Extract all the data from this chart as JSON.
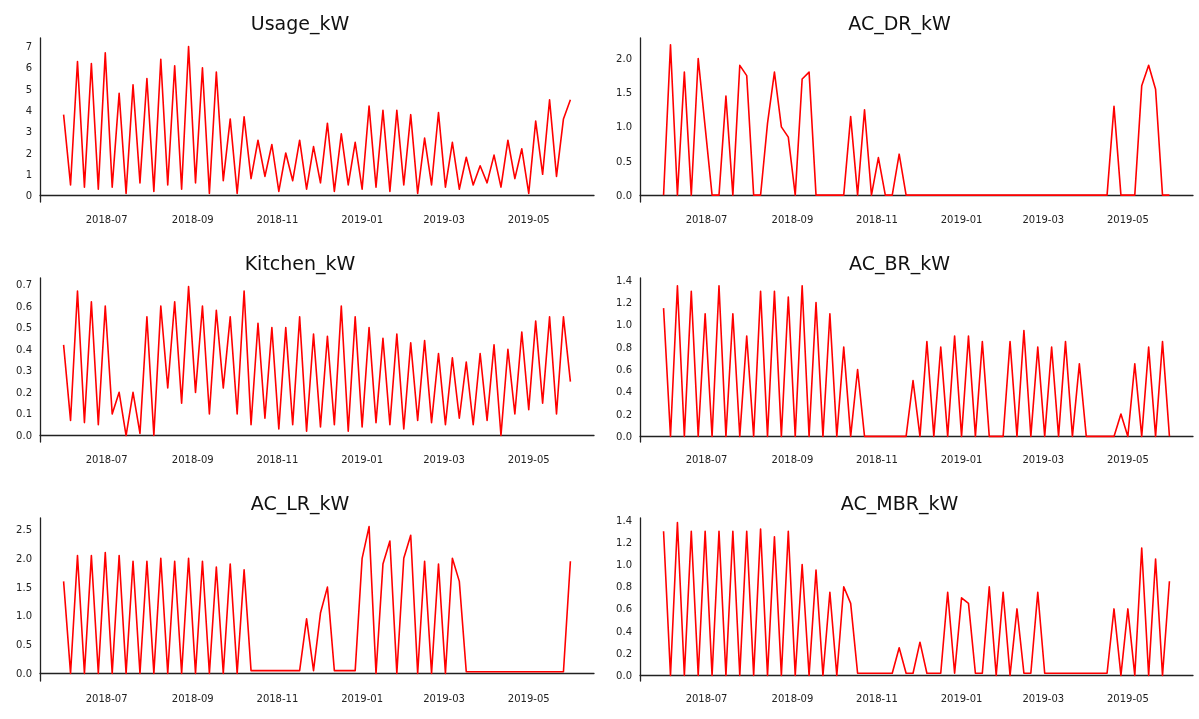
{
  "chart_data": [
    {
      "type": "line",
      "title": "Usage_kW",
      "color": "#ff0000",
      "grid": false,
      "x": [
        "2018-05-31",
        "2018-06-05",
        "2018-06-10",
        "2018-06-15",
        "2018-06-20",
        "2018-06-25",
        "2018-06-30",
        "2018-07-05",
        "2018-07-10",
        "2018-07-15",
        "2018-07-20",
        "2018-07-25",
        "2018-07-30",
        "2018-08-04",
        "2018-08-09",
        "2018-08-14",
        "2018-08-19",
        "2018-08-24",
        "2018-08-29",
        "2018-09-03",
        "2018-09-08",
        "2018-09-13",
        "2018-09-18",
        "2018-09-23",
        "2018-09-28",
        "2018-10-03",
        "2018-10-08",
        "2018-10-13",
        "2018-10-18",
        "2018-10-23",
        "2018-10-28",
        "2018-11-02",
        "2018-11-07",
        "2018-11-12",
        "2018-11-17",
        "2018-11-22",
        "2018-11-27",
        "2018-12-02",
        "2018-12-07",
        "2018-12-12",
        "2018-12-17",
        "2018-12-22",
        "2018-12-27",
        "2019-01-01",
        "2019-01-06",
        "2019-01-11",
        "2019-01-16",
        "2019-01-21",
        "2019-01-26",
        "2019-01-31",
        "2019-02-05",
        "2019-02-10",
        "2019-02-15",
        "2019-02-20",
        "2019-02-25",
        "2019-03-02",
        "2019-03-07",
        "2019-03-12",
        "2019-03-17",
        "2019-03-22",
        "2019-03-27",
        "2019-04-01",
        "2019-04-06",
        "2019-04-11",
        "2019-04-16",
        "2019-04-21",
        "2019-04-26",
        "2019-05-01",
        "2019-05-06",
        "2019-05-11",
        "2019-05-16",
        "2019-05-21",
        "2019-05-26",
        "2019-05-31"
      ],
      "values": [
        3.8,
        0.5,
        6.3,
        0.4,
        6.2,
        0.3,
        6.7,
        0.4,
        4.8,
        0.1,
        5.2,
        0.6,
        5.5,
        0.2,
        6.4,
        0.5,
        6.1,
        0.3,
        7.0,
        0.6,
        6.0,
        0.1,
        5.8,
        0.7,
        3.6,
        0.1,
        3.7,
        0.8,
        2.6,
        0.9,
        2.4,
        0.2,
        2.0,
        0.7,
        2.6,
        0.3,
        2.3,
        0.6,
        3.4,
        0.2,
        2.9,
        0.5,
        2.5,
        0.3,
        4.2,
        0.4,
        4.0,
        0.2,
        4.0,
        0.5,
        3.8,
        0.1,
        2.7,
        0.5,
        3.9,
        0.4,
        2.5,
        0.3,
        1.8,
        0.5,
        1.4,
        0.6,
        1.9,
        0.4,
        2.6,
        0.8,
        2.2,
        0.1,
        3.5,
        1.0,
        4.5,
        0.9,
        3.6,
        4.5
      ],
      "xlim": [
        "2018-05-14",
        "2019-06-17"
      ],
      "xticks": [
        "2018-07",
        "2018-09",
        "2018-11",
        "2019-01",
        "2019-03",
        "2019-05"
      ],
      "ylim": [
        -0.3,
        7.4
      ],
      "yticks": [
        0,
        1,
        2,
        3,
        4,
        5,
        6,
        7
      ]
    },
    {
      "type": "line",
      "title": "AC_DR_kW",
      "color": "#ff0000",
      "grid": false,
      "x": [
        "2018-05-31",
        "2018-06-05",
        "2018-06-10",
        "2018-06-15",
        "2018-06-20",
        "2018-06-25",
        "2018-06-30",
        "2018-07-05",
        "2018-07-10",
        "2018-07-15",
        "2018-07-20",
        "2018-07-25",
        "2018-07-30",
        "2018-08-04",
        "2018-08-09",
        "2018-08-14",
        "2018-08-19",
        "2018-08-24",
        "2018-08-29",
        "2018-09-03",
        "2018-09-08",
        "2018-09-13",
        "2018-09-18",
        "2018-09-23",
        "2018-09-28",
        "2018-10-03",
        "2018-10-08",
        "2018-10-13",
        "2018-10-18",
        "2018-10-23",
        "2018-10-28",
        "2018-11-02",
        "2018-11-07",
        "2018-11-12",
        "2018-11-17",
        "2018-11-22",
        "2018-11-27",
        "2018-12-02",
        "2018-12-07",
        "2018-12-12",
        "2018-12-17",
        "2018-12-22",
        "2018-12-27",
        "2019-01-01",
        "2019-01-06",
        "2019-01-11",
        "2019-01-16",
        "2019-01-21",
        "2019-01-26",
        "2019-01-31",
        "2019-02-05",
        "2019-02-10",
        "2019-02-15",
        "2019-02-20",
        "2019-02-25",
        "2019-03-02",
        "2019-03-07",
        "2019-03-12",
        "2019-03-17",
        "2019-03-22",
        "2019-03-27",
        "2019-04-01",
        "2019-04-06",
        "2019-04-11",
        "2019-04-16",
        "2019-04-21",
        "2019-04-26",
        "2019-05-01",
        "2019-05-06",
        "2019-05-11",
        "2019-05-16",
        "2019-05-21",
        "2019-05-26",
        "2019-05-31"
      ],
      "values": [
        0,
        2.2,
        0,
        1.8,
        0,
        2.0,
        1.0,
        0,
        0,
        1.45,
        0,
        1.9,
        1.75,
        0,
        0,
        1.05,
        1.8,
        1.0,
        0.85,
        0,
        1.7,
        1.8,
        0,
        0,
        0,
        0,
        0,
        1.15,
        0,
        1.25,
        0,
        0.55,
        0,
        0,
        0.6,
        0,
        0,
        0,
        0,
        0,
        0,
        0,
        0,
        0,
        0,
        0,
        0,
        0,
        0,
        0,
        0,
        0,
        0,
        0,
        0,
        0,
        0,
        0,
        0,
        0,
        0,
        0,
        0,
        0,
        0,
        1.3,
        0,
        0,
        0,
        1.6,
        1.9,
        1.55,
        0,
        0
      ],
      "xlim": [
        "2018-05-14",
        "2019-06-17"
      ],
      "xticks": [
        "2018-07",
        "2018-09",
        "2018-11",
        "2019-01",
        "2019-03",
        "2019-05"
      ],
      "ylim": [
        -0.1,
        2.3
      ],
      "yticks": [
        {
          "value": 0,
          "label": "0.0"
        },
        {
          "value": 0.5,
          "label": "0.5"
        },
        {
          "value": 1,
          "label": "1.0"
        },
        {
          "value": 1.5,
          "label": "1.5"
        },
        {
          "value": 2,
          "label": "2.0"
        }
      ]
    },
    {
      "type": "line",
      "title": "Kitchen_kW",
      "color": "#ff0000",
      "grid": false,
      "x": [
        "2018-05-31",
        "2018-06-05",
        "2018-06-10",
        "2018-06-15",
        "2018-06-20",
        "2018-06-25",
        "2018-06-30",
        "2018-07-05",
        "2018-07-10",
        "2018-07-15",
        "2018-07-20",
        "2018-07-25",
        "2018-07-30",
        "2018-08-04",
        "2018-08-09",
        "2018-08-14",
        "2018-08-19",
        "2018-08-24",
        "2018-08-29",
        "2018-09-03",
        "2018-09-08",
        "2018-09-13",
        "2018-09-18",
        "2018-09-23",
        "2018-09-28",
        "2018-10-03",
        "2018-10-08",
        "2018-10-13",
        "2018-10-18",
        "2018-10-23",
        "2018-10-28",
        "2018-11-02",
        "2018-11-07",
        "2018-11-12",
        "2018-11-17",
        "2018-11-22",
        "2018-11-27",
        "2018-12-02",
        "2018-12-07",
        "2018-12-12",
        "2018-12-17",
        "2018-12-22",
        "2018-12-27",
        "2019-01-01",
        "2019-01-06",
        "2019-01-11",
        "2019-01-16",
        "2019-01-21",
        "2019-01-26",
        "2019-01-31",
        "2019-02-05",
        "2019-02-10",
        "2019-02-15",
        "2019-02-20",
        "2019-02-25",
        "2019-03-02",
        "2019-03-07",
        "2019-03-12",
        "2019-03-17",
        "2019-03-22",
        "2019-03-27",
        "2019-04-01",
        "2019-04-06",
        "2019-04-11",
        "2019-04-16",
        "2019-04-21",
        "2019-04-26",
        "2019-05-01",
        "2019-05-06",
        "2019-05-11",
        "2019-05-16",
        "2019-05-21",
        "2019-05-26",
        "2019-05-31"
      ],
      "values": [
        0.42,
        0.07,
        0.67,
        0.06,
        0.62,
        0.05,
        0.6,
        0.1,
        0.2,
        0.0,
        0.2,
        0.01,
        0.55,
        0.0,
        0.6,
        0.22,
        0.62,
        0.15,
        0.69,
        0.2,
        0.6,
        0.1,
        0.58,
        0.22,
        0.55,
        0.1,
        0.67,
        0.05,
        0.52,
        0.08,
        0.5,
        0.03,
        0.5,
        0.05,
        0.55,
        0.02,
        0.47,
        0.04,
        0.46,
        0.05,
        0.6,
        0.02,
        0.55,
        0.04,
        0.5,
        0.06,
        0.45,
        0.05,
        0.47,
        0.03,
        0.43,
        0.07,
        0.44,
        0.06,
        0.38,
        0.05,
        0.36,
        0.08,
        0.34,
        0.05,
        0.38,
        0.07,
        0.42,
        0.0,
        0.4,
        0.1,
        0.48,
        0.12,
        0.53,
        0.15,
        0.55,
        0.1,
        0.55,
        0.25
      ],
      "xlim": [
        "2018-05-14",
        "2019-06-17"
      ],
      "xticks": [
        "2018-07",
        "2018-09",
        "2018-11",
        "2019-01",
        "2019-03",
        "2019-05"
      ],
      "ylim": [
        -0.03,
        0.73
      ],
      "yticks": [
        {
          "value": 0,
          "label": "0.0"
        },
        0.1,
        0.2,
        0.3,
        0.4,
        0.5,
        0.6,
        0.7
      ]
    },
    {
      "type": "line",
      "title": "AC_BR_kW",
      "color": "#ff0000",
      "grid": false,
      "x": [
        "2018-05-31",
        "2018-06-05",
        "2018-06-10",
        "2018-06-15",
        "2018-06-20",
        "2018-06-25",
        "2018-06-30",
        "2018-07-05",
        "2018-07-10",
        "2018-07-15",
        "2018-07-20",
        "2018-07-25",
        "2018-07-30",
        "2018-08-04",
        "2018-08-09",
        "2018-08-14",
        "2018-08-19",
        "2018-08-24",
        "2018-08-29",
        "2018-09-03",
        "2018-09-08",
        "2018-09-13",
        "2018-09-18",
        "2018-09-23",
        "2018-09-28",
        "2018-10-03",
        "2018-10-08",
        "2018-10-13",
        "2018-10-18",
        "2018-10-23",
        "2018-10-28",
        "2018-11-02",
        "2018-11-07",
        "2018-11-12",
        "2018-11-17",
        "2018-11-22",
        "2018-11-27",
        "2018-12-02",
        "2018-12-07",
        "2018-12-12",
        "2018-12-17",
        "2018-12-22",
        "2018-12-27",
        "2019-01-01",
        "2019-01-06",
        "2019-01-11",
        "2019-01-16",
        "2019-01-21",
        "2019-01-26",
        "2019-01-31",
        "2019-02-05",
        "2019-02-10",
        "2019-02-15",
        "2019-02-20",
        "2019-02-25",
        "2019-03-02",
        "2019-03-07",
        "2019-03-12",
        "2019-03-17",
        "2019-03-22",
        "2019-03-27",
        "2019-04-01",
        "2019-04-06",
        "2019-04-11",
        "2019-04-16",
        "2019-04-21",
        "2019-04-26",
        "2019-05-01",
        "2019-05-06",
        "2019-05-11",
        "2019-05-16",
        "2019-05-21",
        "2019-05-26",
        "2019-05-31"
      ],
      "values": [
        1.15,
        0,
        1.35,
        0,
        1.3,
        0,
        1.1,
        0,
        1.35,
        0,
        1.1,
        0,
        0.9,
        0,
        1.3,
        0,
        1.3,
        0,
        1.25,
        0,
        1.35,
        0,
        1.2,
        0,
        1.1,
        0,
        0.8,
        0,
        0.6,
        0,
        0,
        0,
        0,
        0,
        0,
        0,
        0.5,
        0,
        0.85,
        0,
        0.8,
        0,
        0.9,
        0,
        0.9,
        0,
        0.85,
        0,
        0,
        0,
        0.85,
        0,
        0.95,
        0,
        0.8,
        0,
        0.8,
        0,
        0.85,
        0,
        0.65,
        0,
        0,
        0,
        0,
        0,
        0.2,
        0,
        0.65,
        0,
        0.8,
        0,
        0.85,
        0
      ],
      "xlim": [
        "2018-05-14",
        "2019-06-17"
      ],
      "xticks": [
        "2018-07",
        "2018-09",
        "2018-11",
        "2019-01",
        "2019-03",
        "2019-05"
      ],
      "ylim": [
        -0.05,
        1.42
      ],
      "yticks": [
        {
          "value": 0,
          "label": "0.0"
        },
        0.2,
        0.4,
        0.6,
        0.8,
        {
          "value": 1,
          "label": "1.0"
        },
        1.2,
        1.4
      ]
    },
    {
      "type": "line",
      "title": "AC_LR_kW",
      "color": "#ff0000",
      "grid": false,
      "x": [
        "2018-05-31",
        "2018-06-05",
        "2018-06-10",
        "2018-06-15",
        "2018-06-20",
        "2018-06-25",
        "2018-06-30",
        "2018-07-05",
        "2018-07-10",
        "2018-07-15",
        "2018-07-20",
        "2018-07-25",
        "2018-07-30",
        "2018-08-04",
        "2018-08-09",
        "2018-08-14",
        "2018-08-19",
        "2018-08-24",
        "2018-08-29",
        "2018-09-03",
        "2018-09-08",
        "2018-09-13",
        "2018-09-18",
        "2018-09-23",
        "2018-09-28",
        "2018-10-03",
        "2018-10-08",
        "2018-10-13",
        "2018-10-18",
        "2018-10-23",
        "2018-10-28",
        "2018-11-02",
        "2018-11-07",
        "2018-11-12",
        "2018-11-17",
        "2018-11-22",
        "2018-11-27",
        "2018-12-02",
        "2018-12-07",
        "2018-12-12",
        "2018-12-17",
        "2018-12-22",
        "2018-12-27",
        "2019-01-01",
        "2019-01-06",
        "2019-01-11",
        "2019-01-16",
        "2019-01-21",
        "2019-01-26",
        "2019-01-31",
        "2019-02-05",
        "2019-02-10",
        "2019-02-15",
        "2019-02-20",
        "2019-02-25",
        "2019-03-02",
        "2019-03-07",
        "2019-03-12",
        "2019-03-17",
        "2019-03-22",
        "2019-03-27",
        "2019-04-01",
        "2019-04-06",
        "2019-04-11",
        "2019-04-16",
        "2019-04-21",
        "2019-04-26",
        "2019-05-01",
        "2019-05-06",
        "2019-05-11",
        "2019-05-16",
        "2019-05-21",
        "2019-05-26",
        "2019-05-31"
      ],
      "values": [
        1.6,
        0,
        2.05,
        0,
        2.05,
        0,
        2.1,
        0,
        2.05,
        0,
        1.95,
        0,
        1.95,
        0,
        2.0,
        0,
        1.95,
        0,
        2.0,
        0,
        1.95,
        0,
        1.85,
        0,
        1.9,
        0,
        1.8,
        0.05,
        0.05,
        0.05,
        0.05,
        0.05,
        0.05,
        0.05,
        0.05,
        0.95,
        0.05,
        1.05,
        1.5,
        0.05,
        0.05,
        0.05,
        0.05,
        2.0,
        2.55,
        0,
        1.9,
        2.3,
        0,
        2.0,
        2.4,
        0,
        1.95,
        0,
        1.9,
        0,
        2.0,
        1.6,
        0.03,
        0.03,
        0.03,
        0.03,
        0.03,
        0.03,
        0.03,
        0.03,
        0.03,
        0.03,
        0.03,
        0.03,
        0.03,
        0.03,
        0.03,
        1.95
      ],
      "xlim": [
        "2018-05-14",
        "2019-06-17"
      ],
      "xticks": [
        "2018-07",
        "2018-09",
        "2018-11",
        "2019-01",
        "2019-03",
        "2019-05"
      ],
      "ylim": [
        -0.13,
        2.7
      ],
      "yticks": [
        {
          "value": 0,
          "label": "0.0"
        },
        0.5,
        {
          "value": 1,
          "label": "1.0"
        },
        1.5,
        {
          "value": 2,
          "label": "2.0"
        },
        2.5
      ]
    },
    {
      "type": "line",
      "title": "AC_MBR_kW",
      "color": "#ff0000",
      "grid": false,
      "x": [
        "2018-05-31",
        "2018-06-05",
        "2018-06-10",
        "2018-06-15",
        "2018-06-20",
        "2018-06-25",
        "2018-06-30",
        "2018-07-05",
        "2018-07-10",
        "2018-07-15",
        "2018-07-20",
        "2018-07-25",
        "2018-07-30",
        "2018-08-04",
        "2018-08-09",
        "2018-08-14",
        "2018-08-19",
        "2018-08-24",
        "2018-08-29",
        "2018-09-03",
        "2018-09-08",
        "2018-09-13",
        "2018-09-18",
        "2018-09-23",
        "2018-09-28",
        "2018-10-03",
        "2018-10-08",
        "2018-10-13",
        "2018-10-18",
        "2018-10-23",
        "2018-10-28",
        "2018-11-02",
        "2018-11-07",
        "2018-11-12",
        "2018-11-17",
        "2018-11-22",
        "2018-11-27",
        "2018-12-02",
        "2018-12-07",
        "2018-12-12",
        "2018-12-17",
        "2018-12-22",
        "2018-12-27",
        "2019-01-01",
        "2019-01-06",
        "2019-01-11",
        "2019-01-16",
        "2019-01-21",
        "2019-01-26",
        "2019-01-31",
        "2019-02-05",
        "2019-02-10",
        "2019-02-15",
        "2019-02-20",
        "2019-02-25",
        "2019-03-02",
        "2019-03-07",
        "2019-03-12",
        "2019-03-17",
        "2019-03-22",
        "2019-03-27",
        "2019-04-01",
        "2019-04-06",
        "2019-04-11",
        "2019-04-16",
        "2019-04-21",
        "2019-04-26",
        "2019-05-01",
        "2019-05-06",
        "2019-05-11",
        "2019-05-16",
        "2019-05-21",
        "2019-05-26",
        "2019-05-31"
      ],
      "values": [
        1.3,
        0,
        1.38,
        0,
        1.3,
        0,
        1.3,
        0,
        1.3,
        0,
        1.3,
        0,
        1.3,
        0,
        1.32,
        0,
        1.25,
        0,
        1.3,
        0,
        1.0,
        0,
        0.95,
        0,
        0.75,
        0,
        0.8,
        0.65,
        0.02,
        0.02,
        0.02,
        0.02,
        0.02,
        0.02,
        0.25,
        0.02,
        0.02,
        0.3,
        0.02,
        0.02,
        0.02,
        0.75,
        0.02,
        0.7,
        0.65,
        0.02,
        0.02,
        0.8,
        0,
        0.75,
        0,
        0.6,
        0.02,
        0.02,
        0.75,
        0.02,
        0.02,
        0.02,
        0.02,
        0.02,
        0.02,
        0.02,
        0.02,
        0.02,
        0.02,
        0.6,
        0,
        0.6,
        0,
        1.15,
        0,
        1.05,
        0,
        0.85
      ],
      "xlim": [
        "2018-05-14",
        "2019-06-17"
      ],
      "xticks": [
        "2018-07",
        "2018-09",
        "2018-11",
        "2019-01",
        "2019-03",
        "2019-05"
      ],
      "ylim": [
        -0.05,
        1.42
      ],
      "yticks": [
        {
          "value": 0,
          "label": "0.0"
        },
        0.2,
        0.4,
        0.6,
        0.8,
        {
          "value": 1,
          "label": "1.0"
        },
        1.2,
        1.4
      ]
    }
  ]
}
